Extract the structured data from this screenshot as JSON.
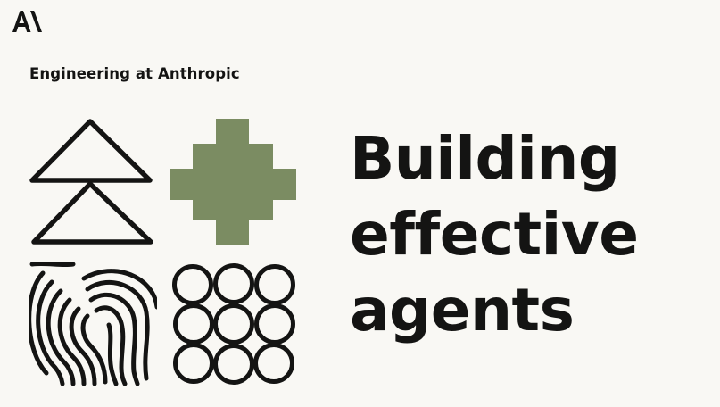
{
  "header": {
    "logo_icon": "anthropic-logo-icon"
  },
  "hero": {
    "eyebrow": "Engineering at Anthropic",
    "title_lines": [
      "Building",
      "effective",
      "agents"
    ],
    "illustration": {
      "tiles": [
        "triangles-icon",
        "stepped-cross-icon",
        "fingerprint-icon",
        "circle-grid-icon"
      ],
      "accent_color": "#7b8c62"
    }
  },
  "colors": {
    "background": "#f9f8f4",
    "text": "#141413"
  }
}
